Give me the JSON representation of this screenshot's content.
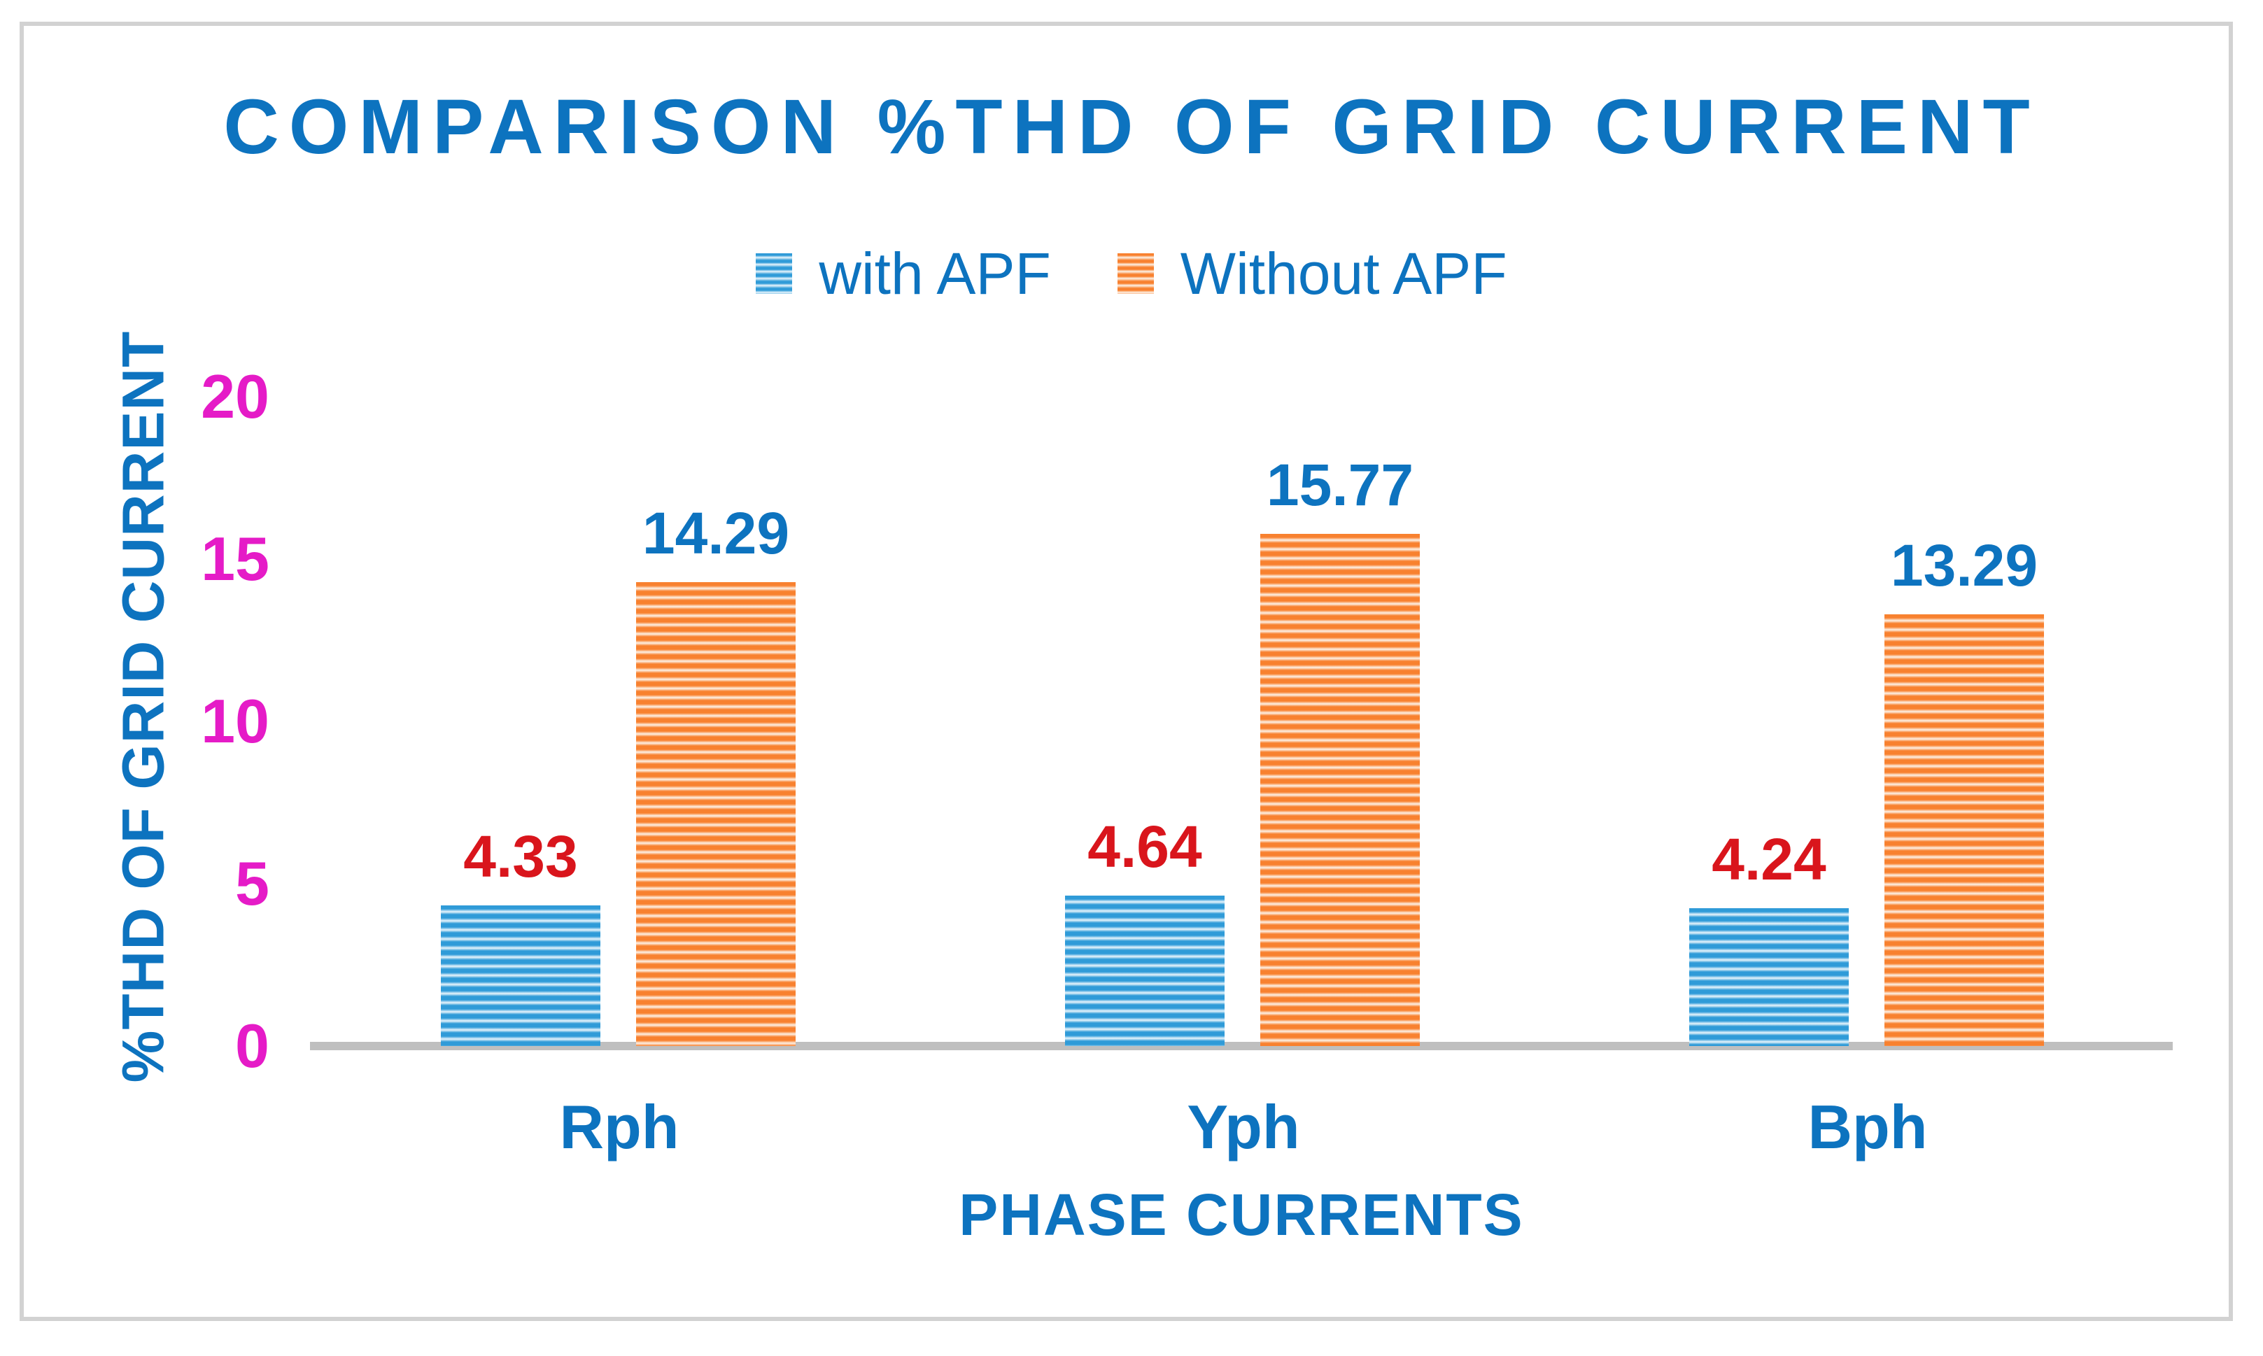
{
  "chart_data": {
    "type": "bar",
    "title": "COMPARISON %THD OF GRID CURRENT",
    "categories": [
      "Rph",
      "Yph",
      "Bph"
    ],
    "series": [
      {
        "name": "with APF",
        "values": [
          4.33,
          4.64,
          4.24
        ],
        "bar_color": "#2f9bd8",
        "stripe_light_color": "#e9f5fc",
        "value_label_color": "#d9151c"
      },
      {
        "name": "Without APF",
        "values": [
          14.29,
          15.77,
          13.29
        ],
        "bar_color": "#f8812f",
        "stripe_light_color": "#fdf2e8",
        "value_label_color": "#0d73bf"
      }
    ],
    "value_labels": {
      "with_apf": [
        "4.33",
        "4.64",
        "4.24"
      ],
      "without_apf": [
        "14.29",
        "15.77",
        "13.29"
      ]
    },
    "xlabel": "PHASE CURRENTS",
    "ylabel": "%THD OF GRID CURRENT",
    "ylim": [
      0,
      20
    ],
    "yticks": [
      0,
      5,
      10,
      15,
      20
    ],
    "grid": false,
    "legend_position": "top-center",
    "bar_pattern": "horizontal-stripes",
    "colors": {
      "title_text": "#0d73bf",
      "axis_text_blue": "#0d73bf",
      "ytick_text": "#e51bc7",
      "axis_line": "#bfbfbf",
      "figure_border": "#d2d2d2",
      "background": "#ffffff"
    }
  }
}
